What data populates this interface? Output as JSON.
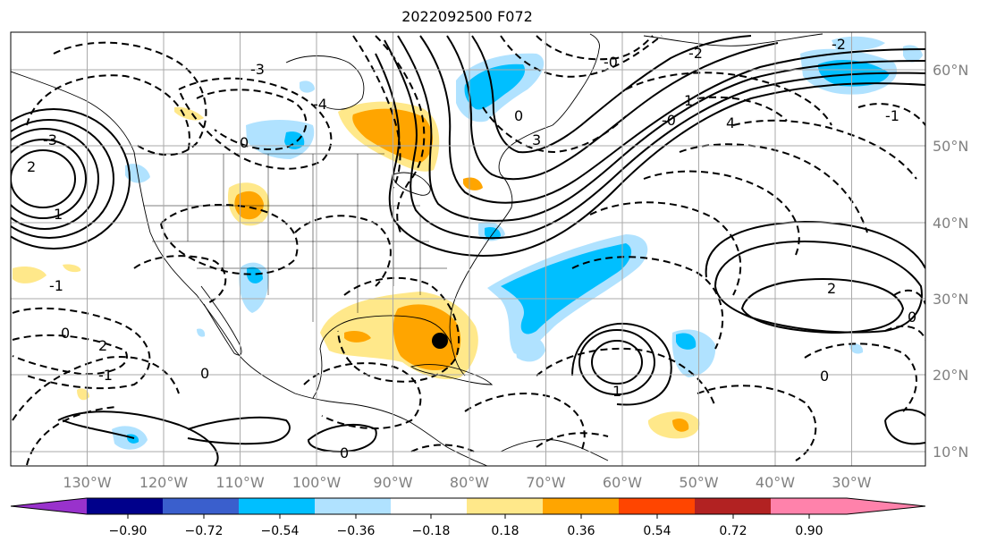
{
  "title": "2022092500 F072",
  "map": {
    "lon_labels": [
      "130°W",
      "120°W",
      "110°W",
      "100°W",
      "90°W",
      "80°W",
      "70°W",
      "60°W",
      "50°W",
      "40°W",
      "30°W"
    ],
    "lat_labels": [
      "60°N",
      "50°N",
      "40°N",
      "30°N",
      "20°N",
      "10°N"
    ],
    "contour_labels": [
      "0",
      "0",
      "0",
      "0",
      "0",
      "0",
      "0",
      "-1",
      "-1",
      "-1",
      "-2",
      "-2",
      "-3",
      "-3",
      "-4",
      "1",
      "1",
      "1",
      "2",
      "2",
      "2",
      "3",
      "4",
      "-0",
      "-0"
    ],
    "colors": {
      "land_outline": "#000000",
      "grid": "#aaaaaa",
      "tick_label": "#808080"
    },
    "marker": "storm-center-dot"
  },
  "colorbar": {
    "tick_labels": [
      "−0.90",
      "−0.72",
      "−0.54",
      "−0.36",
      "−0.18",
      "0.18",
      "0.36",
      "0.54",
      "0.72",
      "0.90"
    ],
    "colors": [
      "#9932cc",
      "#00008b",
      "#3a5fcd",
      "#00bfff",
      "#b0e2ff",
      "#ffffff",
      "#ffe88a",
      "#ffa500",
      "#ff4500",
      "#b22222",
      "#ff82ab"
    ]
  }
}
